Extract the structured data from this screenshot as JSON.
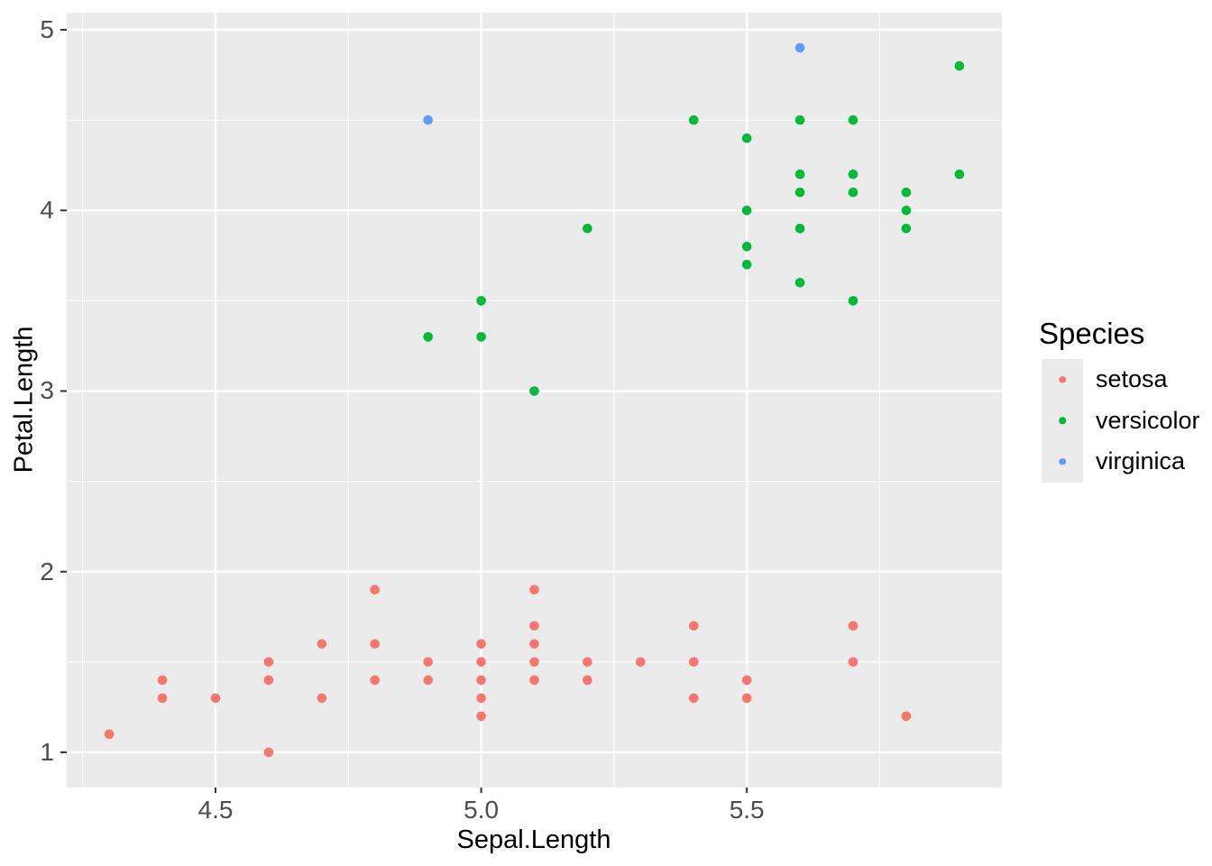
{
  "chart_data": {
    "type": "scatter",
    "title": "",
    "xlabel": "Sepal.Length",
    "ylabel": "Petal.Length",
    "xlim": [
      4.22,
      5.98
    ],
    "ylim": [
      0.805,
      5.095
    ],
    "x_ticks": [
      4.5,
      5.0,
      5.5
    ],
    "x_tick_labels": [
      "4.5",
      "5.0",
      "5.5"
    ],
    "x_minor_breaks": [
      4.25,
      4.75,
      5.25,
      5.75
    ],
    "y_ticks": [
      1,
      2,
      3,
      4,
      5
    ],
    "y_tick_labels": [
      "1",
      "2",
      "3",
      "4",
      "5"
    ],
    "y_minor_breaks": [
      1.5,
      2.5,
      3.5,
      4.5
    ],
    "grid": "major-and-minor-white-on-grey",
    "legend_position": "right",
    "legend_title": "Species",
    "series": [
      {
        "name": "setosa",
        "color": "#F8766D",
        "points": [
          [
            4.3,
            1.1
          ],
          [
            4.4,
            1.3
          ],
          [
            4.4,
            1.4
          ],
          [
            4.5,
            1.3
          ],
          [
            4.6,
            1.0
          ],
          [
            4.6,
            1.4
          ],
          [
            4.6,
            1.5
          ],
          [
            4.7,
            1.3
          ],
          [
            4.7,
            1.6
          ],
          [
            4.8,
            1.4
          ],
          [
            4.8,
            1.6
          ],
          [
            4.8,
            1.9
          ],
          [
            4.9,
            1.4
          ],
          [
            4.9,
            1.5
          ],
          [
            5.0,
            1.2
          ],
          [
            5.0,
            1.3
          ],
          [
            5.0,
            1.4
          ],
          [
            5.0,
            1.5
          ],
          [
            5.0,
            1.6
          ],
          [
            5.1,
            1.4
          ],
          [
            5.1,
            1.5
          ],
          [
            5.1,
            1.6
          ],
          [
            5.1,
            1.7
          ],
          [
            5.1,
            1.9
          ],
          [
            5.2,
            1.4
          ],
          [
            5.2,
            1.5
          ],
          [
            5.3,
            1.5
          ],
          [
            5.4,
            1.3
          ],
          [
            5.4,
            1.5
          ],
          [
            5.4,
            1.7
          ],
          [
            5.5,
            1.3
          ],
          [
            5.5,
            1.4
          ],
          [
            5.7,
            1.5
          ],
          [
            5.7,
            1.7
          ],
          [
            5.8,
            1.2
          ]
        ]
      },
      {
        "name": "versicolor",
        "color": "#00BA38",
        "points": [
          [
            4.9,
            3.3
          ],
          [
            5.0,
            3.3
          ],
          [
            5.0,
            3.5
          ],
          [
            5.1,
            3.0
          ],
          [
            5.2,
            3.9
          ],
          [
            5.4,
            4.5
          ],
          [
            5.5,
            3.7
          ],
          [
            5.5,
            3.8
          ],
          [
            5.5,
            4.0
          ],
          [
            5.5,
            4.4
          ],
          [
            5.6,
            3.6
          ],
          [
            5.6,
            3.9
          ],
          [
            5.6,
            4.1
          ],
          [
            5.6,
            4.2
          ],
          [
            5.6,
            4.5
          ],
          [
            5.7,
            3.5
          ],
          [
            5.7,
            4.1
          ],
          [
            5.7,
            4.2
          ],
          [
            5.7,
            4.5
          ],
          [
            5.8,
            3.9
          ],
          [
            5.8,
            4.0
          ],
          [
            5.8,
            4.1
          ],
          [
            5.9,
            4.2
          ],
          [
            5.9,
            4.8
          ]
        ]
      },
      {
        "name": "virginica",
        "color": "#619CFF",
        "points": [
          [
            4.9,
            4.5
          ],
          [
            5.6,
            4.9
          ]
        ]
      }
    ]
  },
  "style": {
    "panel_background": "#EBEBEB",
    "grid_color": "#FFFFFF",
    "tick_mark_color": "#333333",
    "tick_label_color": "#4D4D4D",
    "text_color": "#000000",
    "figure_background": "#FFFFFF"
  }
}
